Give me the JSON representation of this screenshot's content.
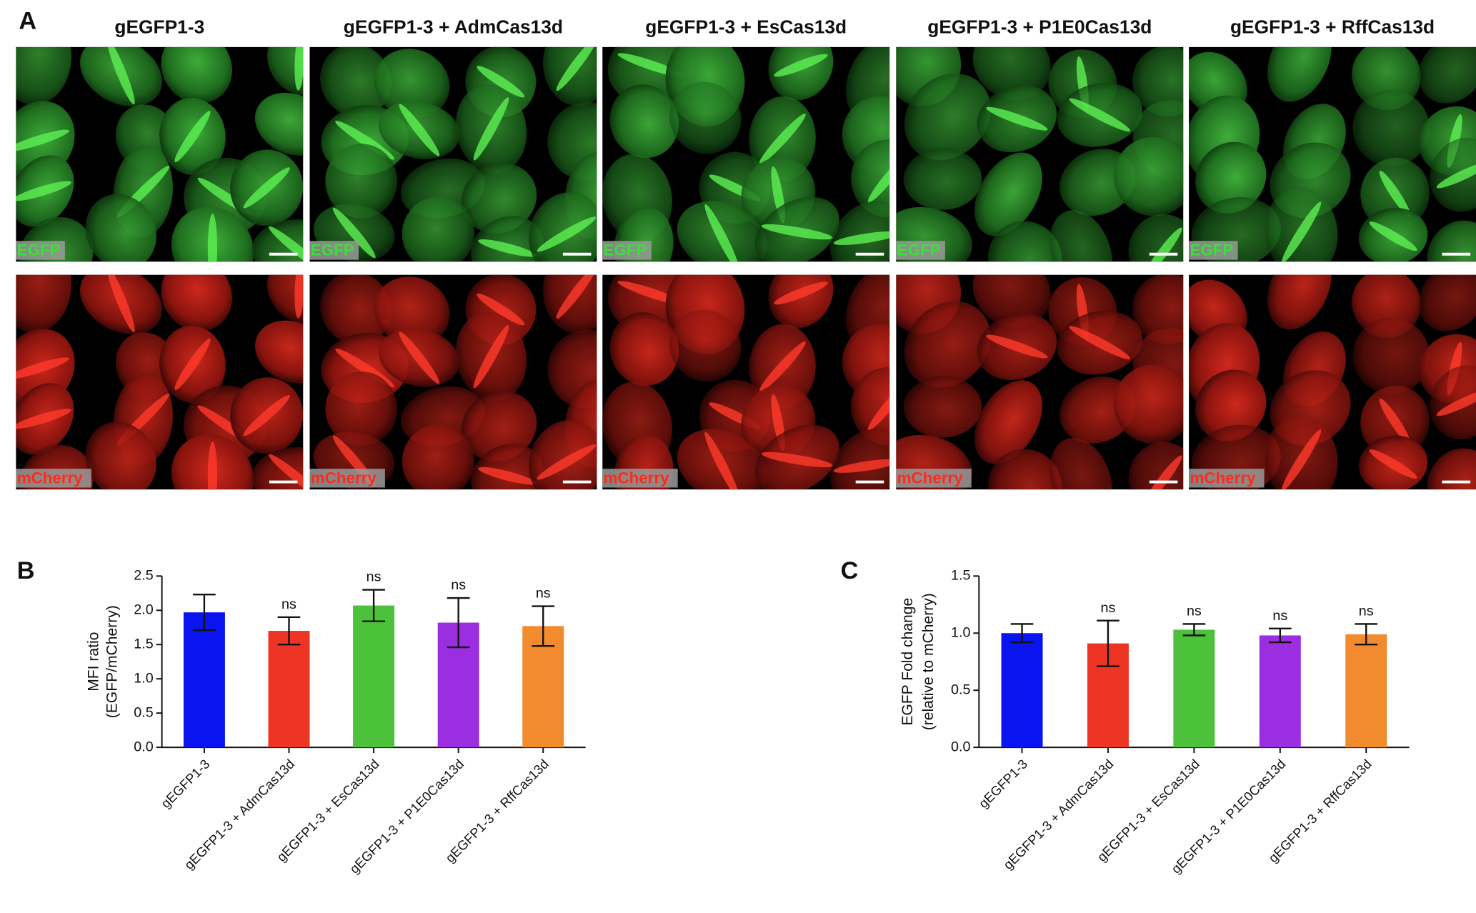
{
  "figure": {
    "panel_labels": [
      "A",
      "B",
      "C"
    ],
    "columns": [
      "gEGFP1-3",
      "gEGFP1-3 + AdmCas13d",
      "gEGFP1-3 + EsCas13d",
      "gEGFP1-3 + P1E0Cas13d",
      "gEGFP1-3 + RffCas13d"
    ],
    "channels": [
      "EGFP",
      "mCherry"
    ]
  },
  "chart_data": [
    {
      "type": "bar",
      "ylabel": [
        "MFI ratio",
        "(EGFP/mCherry)"
      ],
      "categories": [
        "gEGFP1-3",
        "gEGFP1-3 + AdmCas13d",
        "gEGFP1-3 + EsCas13d",
        "gEGFP1-3 + P1E0Cas13d",
        "gEGFP1-3 + RffCas13d"
      ],
      "values": [
        1.97,
        1.7,
        2.07,
        1.82,
        1.77
      ],
      "errors": [
        0.26,
        0.2,
        0.23,
        0.36,
        0.29
      ],
      "colors": [
        "#0a14f0",
        "#ee3424",
        "#4cc23a",
        "#9b2ee0",
        "#f28a2e"
      ],
      "annotations": [
        null,
        "ns",
        "ns",
        "ns",
        "ns"
      ],
      "ylim": [
        0,
        2.5
      ],
      "yticks": [
        {
          "value": 0,
          "label": "0.0"
        },
        0.5,
        {
          "value": 1,
          "label": "1.0"
        },
        1.5,
        {
          "value": 2,
          "label": "2.0"
        },
        2.5
      ]
    },
    {
      "type": "bar",
      "ylabel": [
        "EGFP Fold change",
        "(relative to mCherry)"
      ],
      "categories": [
        "gEGFP1-3",
        "gEGFP1-3 + AdmCas13d",
        "gEGFP1-3 + EsCas13d",
        "gEGFP1-3 + P1E0Cas13d",
        "gEGFP1-3 + RffCas13d"
      ],
      "values": [
        1.0,
        0.91,
        1.03,
        0.98,
        0.99
      ],
      "errors": [
        0.08,
        0.2,
        0.05,
        0.06,
        0.09
      ],
      "colors": [
        "#0a14f0",
        "#ee3424",
        "#4cc23a",
        "#9b2ee0",
        "#f28a2e"
      ],
      "annotations": [
        null,
        "ns",
        "ns",
        "ns",
        "ns"
      ],
      "ylim": [
        0,
        1.5
      ],
      "yticks": [
        {
          "value": 0,
          "label": "0.0"
        },
        0.5,
        {
          "value": 1,
          "label": "1.0"
        },
        1.5
      ]
    }
  ]
}
